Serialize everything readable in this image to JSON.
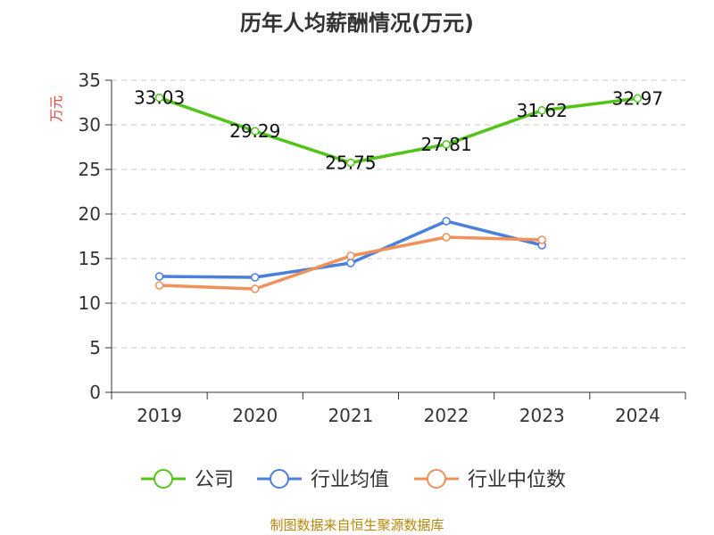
{
  "title": "历年人均薪酬情况(万元)",
  "source": "制图数据来自恒生聚源数据库",
  "colors": {
    "company": "#52c41a",
    "industry_avg": "#4a7fdc",
    "industry_median": "#f0905a",
    "unit": "#e0413c",
    "source": "#b8860b"
  },
  "chart_data": {
    "type": "line",
    "title": "历年人均薪酬情况(万元)",
    "xlabel": "",
    "ylabel": "万元",
    "categories": [
      "2019",
      "2020",
      "2021",
      "2022",
      "2023",
      "2024"
    ],
    "ylim": [
      0,
      35
    ],
    "yticks": [
      0,
      5,
      10,
      15,
      20,
      25,
      30,
      35
    ],
    "grid": true,
    "legend": "bottom",
    "series": [
      {
        "name": "公司",
        "values": [
          33.03,
          29.29,
          25.75,
          27.81,
          31.62,
          32.97
        ],
        "labels": [
          "33.03",
          "29.29",
          "25.75",
          "27.81",
          "31.62",
          "32.97"
        ]
      },
      {
        "name": "行业均值",
        "values": [
          13.0,
          12.9,
          14.5,
          19.2,
          16.5,
          null
        ]
      },
      {
        "name": "行业中位数",
        "values": [
          12.0,
          11.6,
          15.3,
          17.4,
          17.1,
          null
        ]
      }
    ]
  }
}
